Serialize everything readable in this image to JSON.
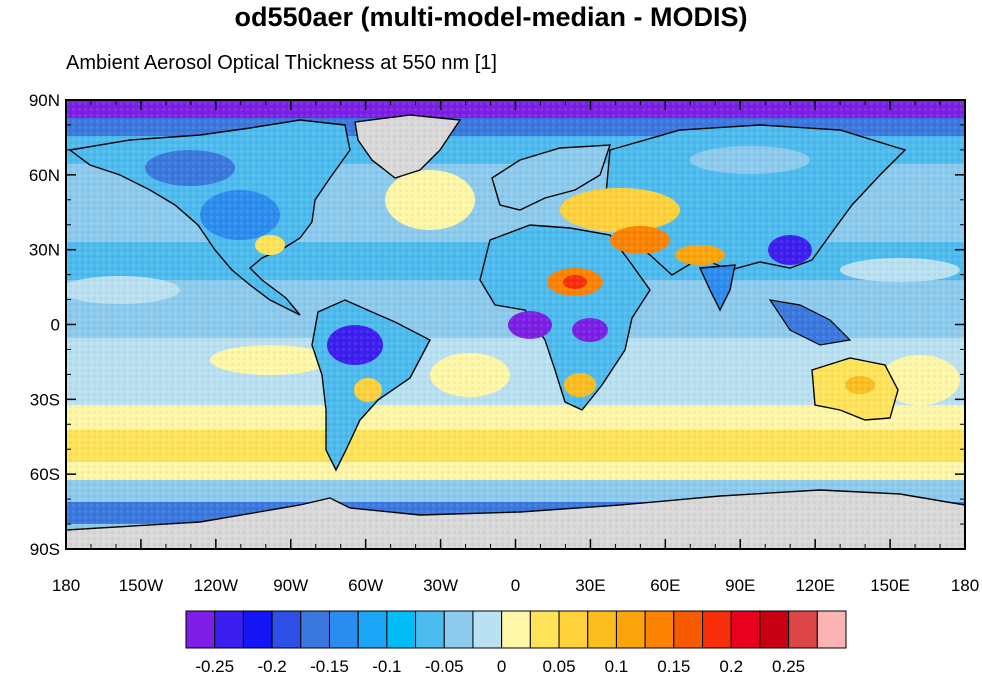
{
  "title": "od550aer (multi-model-median - MODIS)",
  "subtitle": "Ambient Aerosol Optical Thickness at 550 nm [1]",
  "map": {
    "projection": "equirectangular",
    "lon_range": [
      -180,
      180
    ],
    "lat_range": [
      -90,
      90
    ],
    "land_fill_color": "#d9d9d9",
    "coastline_color": "#000000",
    "y_ticks": [
      {
        "lat": 90,
        "label": "90N"
      },
      {
        "lat": 60,
        "label": "60N"
      },
      {
        "lat": 30,
        "label": "30N"
      },
      {
        "lat": 0,
        "label": "0"
      },
      {
        "lat": -30,
        "label": "30S"
      },
      {
        "lat": -60,
        "label": "60S"
      },
      {
        "lat": -90,
        "label": "90S"
      }
    ],
    "x_ticks": [
      {
        "lon": -180,
        "label": "180"
      },
      {
        "lon": -150,
        "label": "150W"
      },
      {
        "lon": -120,
        "label": "120W"
      },
      {
        "lon": -90,
        "label": "90W"
      },
      {
        "lon": -60,
        "label": "60W"
      },
      {
        "lon": -30,
        "label": "30W"
      },
      {
        "lon": 0,
        "label": "0"
      },
      {
        "lon": 30,
        "label": "30E"
      },
      {
        "lon": 60,
        "label": "60E"
      },
      {
        "lon": 90,
        "label": "90E"
      },
      {
        "lon": 120,
        "label": "120E"
      },
      {
        "lon": 150,
        "label": "150E"
      },
      {
        "lon": 180,
        "label": "180"
      }
    ]
  },
  "colorbar": {
    "colors": [
      "#7c1ee6",
      "#3c1ef0",
      "#1414f5",
      "#2d50e6",
      "#3a78e0",
      "#2b8cf0",
      "#1aa5f5",
      "#00bef5",
      "#4cbcf0",
      "#8ccbee",
      "#b9e1f2",
      "#fff7a8",
      "#ffe45a",
      "#ffd23c",
      "#fcbe1e",
      "#fca50a",
      "#fc8200",
      "#f85a00",
      "#f82d0a",
      "#e8001e",
      "#c80014",
      "#dc4646",
      "#fab4b4"
    ],
    "labels": [
      "-0.25",
      "-0.2",
      "-0.15",
      "-0.1",
      "-0.05",
      "0",
      "0.05",
      "0.1",
      "0.15",
      "0.2",
      "0.25"
    ]
  }
}
